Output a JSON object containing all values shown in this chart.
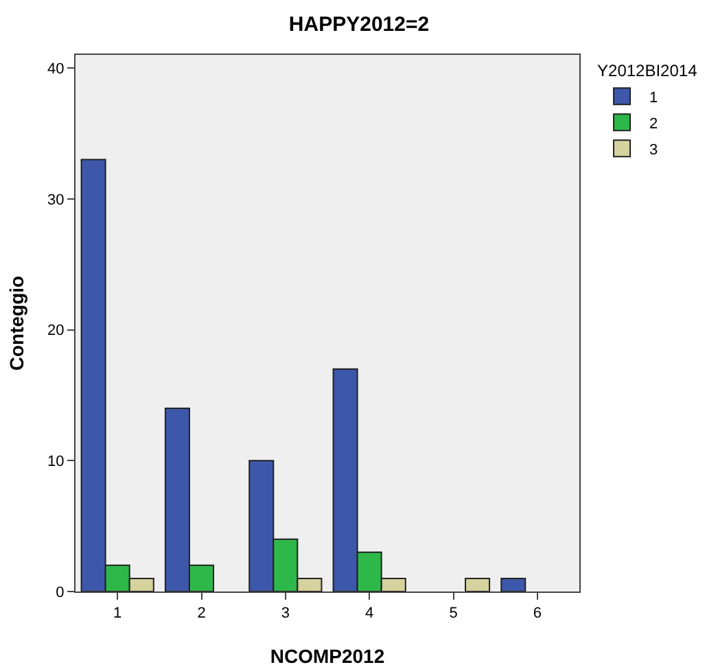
{
  "chart_data": {
    "type": "bar",
    "title": "HAPPY2012=2",
    "xlabel": "NCOMP2012",
    "ylabel": "Conteggio",
    "legend_title": "Y2012BI2014",
    "categories": [
      "1",
      "2",
      "3",
      "4",
      "5",
      "6"
    ],
    "series": [
      {
        "name": "1",
        "color": "#3d57aa",
        "values": [
          33,
          14,
          10,
          17,
          null,
          1
        ]
      },
      {
        "name": "2",
        "color": "#2fb84a",
        "values": [
          2,
          2,
          4,
          3,
          null,
          null
        ]
      },
      {
        "name": "3",
        "color": "#d6d29e",
        "values": [
          1,
          null,
          1,
          1,
          1,
          null
        ]
      }
    ],
    "ylim": [
      0,
      41
    ],
    "yticks": [
      0,
      10,
      20,
      30,
      40
    ],
    "grid": false,
    "legend": "top right"
  }
}
